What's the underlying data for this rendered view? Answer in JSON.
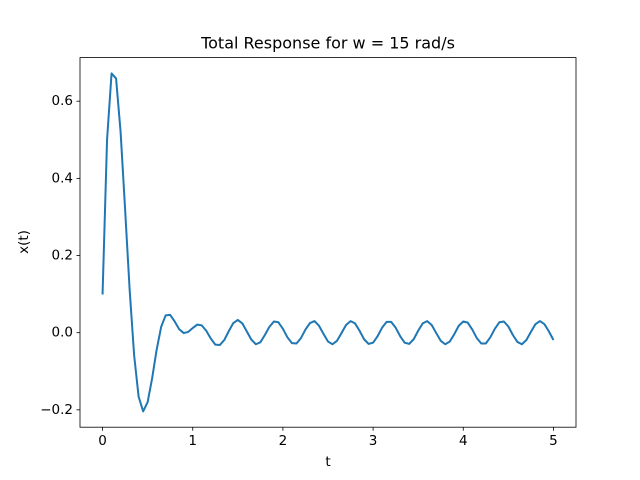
{
  "chart_data": {
    "type": "line",
    "title": "Total Response for w = 15 rad/s",
    "x_label": "t",
    "y_label": "x(t)",
    "color": "#1f77b4",
    "x": [
      0,
      0.05,
      0.1,
      0.15,
      0.2,
      0.25,
      0.3,
      0.35,
      0.4,
      0.45,
      0.5,
      0.55,
      0.6,
      0.65,
      0.7,
      0.75,
      0.8,
      0.85,
      0.9,
      0.95,
      1,
      1.05,
      1.1,
      1.15,
      1.2,
      1.25,
      1.3,
      1.35,
      1.4,
      1.45,
      1.5,
      1.55,
      1.6,
      1.65,
      1.7,
      1.75,
      1.8,
      1.85,
      1.9,
      1.95,
      2,
      2.05,
      2.1,
      2.15,
      2.2,
      2.25,
      2.3,
      2.35,
      2.4,
      2.45,
      2.5,
      2.55,
      2.6,
      2.65,
      2.7,
      2.75,
      2.8,
      2.85,
      2.9,
      2.95,
      3,
      3.05,
      3.1,
      3.15,
      3.2,
      3.25,
      3.3,
      3.35,
      3.4,
      3.45,
      3.5,
      3.55,
      3.6,
      3.65,
      3.7,
      3.75,
      3.8,
      3.85,
      3.9,
      3.95,
      4,
      4.05,
      4.1,
      4.15,
      4.2,
      4.25,
      4.3,
      4.35,
      4.4,
      4.45,
      4.5,
      4.55,
      4.6,
      4.65,
      4.7,
      4.75,
      4.8,
      4.85,
      4.9,
      4.95,
      5
    ],
    "values": [
      0.099,
      0.5,
      0.672,
      0.659,
      0.521,
      0.32,
      0.113,
      -0.058,
      -0.166,
      -0.204,
      -0.18,
      -0.118,
      -0.044,
      0.015,
      0.045,
      0.046,
      0.029,
      0.009,
      -0.001,
      0.002,
      0.012,
      0.021,
      0.019,
      0.005,
      -0.015,
      -0.031,
      -0.032,
      -0.019,
      0.004,
      0.025,
      0.033,
      0.024,
      0.003,
      -0.018,
      -0.03,
      -0.025,
      -0.006,
      0.015,
      0.029,
      0.027,
      0.01,
      -0.012,
      -0.027,
      -0.028,
      -0.014,
      0.008,
      0.025,
      0.03,
      0.018,
      -0.003,
      -0.023,
      -0.03,
      -0.021,
      -0.001,
      0.02,
      0.03,
      0.024,
      0.005,
      -0.017,
      -0.029,
      -0.026,
      -0.009,
      0.013,
      0.028,
      0.028,
      0.013,
      -0.009,
      -0.026,
      -0.029,
      -0.017,
      0.005,
      0.024,
      0.03,
      0.02,
      -0.001,
      -0.021,
      -0.03,
      -0.023,
      -0.004,
      0.018,
      0.029,
      0.026,
      0.008,
      -0.014,
      -0.028,
      -0.028,
      -0.012,
      0.01,
      0.027,
      0.029,
      0.016,
      -0.006,
      -0.024,
      -0.03,
      -0.019,
      0.002,
      0.022,
      0.03,
      0.022,
      0.003,
      -0.019
    ],
    "xlim": [
      -0.25,
      5.25
    ],
    "ylim": [
      -0.245,
      0.713
    ],
    "xticks": [
      0,
      1,
      2,
      3,
      4,
      5
    ],
    "yticks": [
      {
        "value": -0.2,
        "label": "−0.2"
      },
      {
        "value": 0,
        "label": "0.0"
      },
      0.2,
      0.4,
      0.6
    ],
    "grid": false
  }
}
